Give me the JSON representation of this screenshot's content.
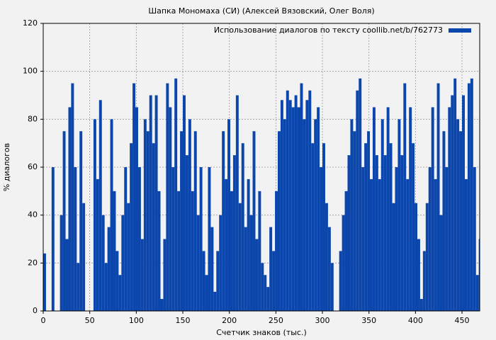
{
  "chart_data": {
    "type": "bar",
    "title": "Шапка Мономаха (СИ) (Алексей Вязовский, Олег Воля)",
    "x_label": "Счетчик знаков (тыс.)",
    "y_label": "% диалогов",
    "xlim": [
      0,
      469
    ],
    "ylim": [
      0,
      120
    ],
    "xticks": [
      0,
      50,
      100,
      150,
      200,
      250,
      300,
      350,
      400,
      450
    ],
    "yticks": [
      0,
      20,
      40,
      60,
      80,
      100,
      120
    ],
    "grid": true,
    "legend": "upper right",
    "x": [
      0,
      3,
      6,
      9,
      12,
      15,
      18,
      21,
      24,
      27,
      30,
      33,
      36,
      39,
      42,
      45,
      48,
      51,
      54,
      57,
      60,
      63,
      66,
      69,
      72,
      75,
      78,
      81,
      84,
      87,
      90,
      93,
      96,
      99,
      102,
      105,
      108,
      111,
      114,
      117,
      120,
      123,
      126,
      129,
      132,
      135,
      138,
      141,
      144,
      147,
      150,
      153,
      156,
      159,
      162,
      165,
      168,
      171,
      174,
      177,
      180,
      183,
      186,
      189,
      192,
      195,
      198,
      201,
      204,
      207,
      210,
      213,
      216,
      219,
      222,
      225,
      228,
      231,
      234,
      237,
      240,
      243,
      246,
      249,
      252,
      255,
      258,
      261,
      264,
      267,
      270,
      273,
      276,
      279,
      282,
      285,
      288,
      291,
      294,
      297,
      300,
      303,
      306,
      309,
      312,
      315,
      318,
      321,
      324,
      327,
      330,
      333,
      336,
      339,
      342,
      345,
      348,
      351,
      354,
      357,
      360,
      363,
      366,
      369,
      372,
      375,
      378,
      381,
      384,
      387,
      390,
      393,
      396,
      399,
      402,
      405,
      408,
      411,
      414,
      417,
      420,
      423,
      426,
      429,
      432,
      435,
      438,
      441,
      444,
      447,
      450,
      453,
      456,
      459,
      462,
      465,
      468
    ],
    "series": [
      {
        "name": "Использование диалогов по тексту coollib.net/b/762773",
        "color": "#0b46ad",
        "values": [
          24,
          0,
          0,
          60,
          0,
          0,
          40,
          75,
          30,
          85,
          95,
          60,
          20,
          75,
          45,
          0,
          0,
          0,
          80,
          55,
          88,
          40,
          20,
          35,
          80,
          50,
          25,
          15,
          40,
          60,
          45,
          70,
          95,
          85,
          60,
          30,
          80,
          75,
          90,
          70,
          90,
          50,
          5,
          30,
          95,
          85,
          60,
          97,
          50,
          75,
          90,
          65,
          80,
          50,
          75,
          40,
          60,
          25,
          15,
          60,
          35,
          8,
          25,
          40,
          75,
          55,
          80,
          50,
          65,
          90,
          45,
          70,
          35,
          55,
          40,
          75,
          30,
          50,
          20,
          15,
          10,
          35,
          25,
          50,
          75,
          88,
          80,
          92,
          88,
          85,
          90,
          85,
          95,
          80,
          88,
          92,
          70,
          80,
          85,
          60,
          70,
          45,
          35,
          20,
          0,
          0,
          25,
          40,
          50,
          65,
          80,
          75,
          92,
          97,
          60,
          70,
          75,
          55,
          85,
          65,
          55,
          80,
          65,
          85,
          70,
          45,
          60,
          80,
          65,
          95,
          55,
          85,
          70,
          45,
          30,
          5,
          25,
          45,
          60,
          85,
          55,
          95,
          40,
          75,
          60,
          85,
          90,
          97,
          80,
          75,
          90,
          55,
          95,
          97,
          60,
          15,
          30
        ]
      }
    ]
  }
}
